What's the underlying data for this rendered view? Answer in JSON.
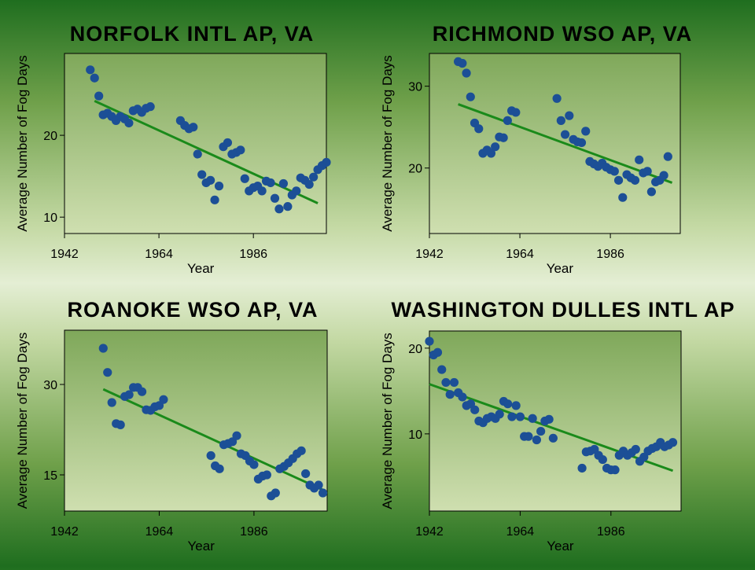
{
  "colors": {
    "point": "#1c4f96",
    "trend": "#1a8a1a",
    "plot_bg_top": "#7fa85a",
    "plot_bg_bottom": "#cfdfb0"
  },
  "chart_data": [
    {
      "type": "scatter",
      "title": "NORFOLK INTL AP, VA",
      "xlabel": "Year",
      "ylabel": "Average Number of Fog Days",
      "xlim": [
        1942,
        2003
      ],
      "ylim": [
        8,
        30
      ],
      "xticks": [
        1942,
        1964,
        1986
      ],
      "yticks": [
        10,
        20
      ],
      "points": [
        [
          1948,
          28
        ],
        [
          1949,
          27
        ],
        [
          1950,
          24.8
        ],
        [
          1951,
          22.5
        ],
        [
          1952,
          22.7
        ],
        [
          1953,
          22.3
        ],
        [
          1954,
          21.8
        ],
        [
          1955,
          22.3
        ],
        [
          1956,
          22
        ],
        [
          1957,
          21.5
        ],
        [
          1958,
          23
        ],
        [
          1959,
          23.2
        ],
        [
          1960,
          22.8
        ],
        [
          1961,
          23.3
        ],
        [
          1962,
          23.5
        ],
        [
          1969,
          21.8
        ],
        [
          1970,
          21.2
        ],
        [
          1971,
          20.8
        ],
        [
          1972,
          21
        ],
        [
          1973,
          17.7
        ],
        [
          1974,
          15.2
        ],
        [
          1975,
          14.2
        ],
        [
          1976,
          14.5
        ],
        [
          1977,
          12.1
        ],
        [
          1978,
          13.8
        ],
        [
          1979,
          18.6
        ],
        [
          1980,
          19.1
        ],
        [
          1981,
          17.7
        ],
        [
          1982,
          17.9
        ],
        [
          1983,
          18.2
        ],
        [
          1984,
          14.7
        ],
        [
          1985,
          13.2
        ],
        [
          1986,
          13.6
        ],
        [
          1987,
          13.8
        ],
        [
          1988,
          13.2
        ],
        [
          1989,
          14.4
        ],
        [
          1990,
          14.2
        ],
        [
          1991,
          12.3
        ],
        [
          1992,
          11
        ],
        [
          1993,
          14.1
        ],
        [
          1994,
          11.3
        ],
        [
          1995,
          12.7
        ],
        [
          1996,
          13.2
        ],
        [
          1997,
          14.8
        ],
        [
          1998,
          14.5
        ],
        [
          1999,
          14
        ],
        [
          2000,
          14.9
        ],
        [
          2001,
          15.8
        ],
        [
          2002,
          16.3
        ],
        [
          2003,
          16.7
        ]
      ],
      "trend": [
        [
          1949,
          24.2
        ],
        [
          2001,
          11.7
        ]
      ]
    },
    {
      "type": "scatter",
      "title": "RICHMOND WSO AP, VA",
      "xlabel": "Year",
      "ylabel": "Average Number of Fog Days",
      "xlim": [
        1942,
        2003
      ],
      "ylim": [
        12,
        34
      ],
      "xticks": [
        1942,
        1964,
        1986
      ],
      "yticks": [
        20,
        30
      ],
      "points": [
        [
          1949,
          33
        ],
        [
          1950,
          32.8
        ],
        [
          1951,
          31.6
        ],
        [
          1952,
          28.7
        ],
        [
          1953,
          25.5
        ],
        [
          1954,
          24.8
        ],
        [
          1955,
          21.8
        ],
        [
          1956,
          22.2
        ],
        [
          1957,
          21.8
        ],
        [
          1958,
          22.6
        ],
        [
          1959,
          23.8
        ],
        [
          1960,
          23.7
        ],
        [
          1961,
          25.8
        ],
        [
          1962,
          27
        ],
        [
          1963,
          26.8
        ],
        [
          1973,
          28.5
        ],
        [
          1974,
          25.8
        ],
        [
          1975,
          24.1
        ],
        [
          1976,
          26.4
        ],
        [
          1977,
          23.5
        ],
        [
          1978,
          23.2
        ],
        [
          1979,
          23.1
        ],
        [
          1980,
          24.5
        ],
        [
          1981,
          20.8
        ],
        [
          1982,
          20.5
        ],
        [
          1983,
          20.2
        ],
        [
          1984,
          20.6
        ],
        [
          1985,
          20.1
        ],
        [
          1986,
          19.8
        ],
        [
          1987,
          19.6
        ],
        [
          1988,
          18.5
        ],
        [
          1989,
          16.4
        ],
        [
          1990,
          19.2
        ],
        [
          1991,
          18.8
        ],
        [
          1992,
          18.5
        ],
        [
          1993,
          21
        ],
        [
          1994,
          19.4
        ],
        [
          1995,
          19.6
        ],
        [
          1996,
          17.1
        ],
        [
          1997,
          18.3
        ],
        [
          1998,
          18.5
        ],
        [
          1999,
          19.1
        ],
        [
          2000,
          21.4
        ]
      ],
      "trend": [
        [
          1949,
          27.8
        ],
        [
          2001,
          18.2
        ]
      ]
    },
    {
      "type": "scatter",
      "title": "ROANOKE WSO AP, VA",
      "xlabel": "Year",
      "ylabel": "Average Number of Fog Days",
      "xlim": [
        1942,
        2003
      ],
      "ylim": [
        9,
        39
      ],
      "xticks": [
        1942,
        1964,
        1986
      ],
      "yticks": [
        15,
        30
      ],
      "points": [
        [
          1951,
          36
        ],
        [
          1952,
          32
        ],
        [
          1953,
          27
        ],
        [
          1954,
          23.5
        ],
        [
          1955,
          23.3
        ],
        [
          1956,
          28
        ],
        [
          1957,
          28.3
        ],
        [
          1958,
          29.5
        ],
        [
          1959,
          29.5
        ],
        [
          1960,
          28.8
        ],
        [
          1961,
          25.8
        ],
        [
          1962,
          25.7
        ],
        [
          1963,
          26.3
        ],
        [
          1964,
          26.5
        ],
        [
          1965,
          27.5
        ],
        [
          1976,
          18.2
        ],
        [
          1977,
          16.5
        ],
        [
          1978,
          16
        ],
        [
          1979,
          20
        ],
        [
          1980,
          20.2
        ],
        [
          1981,
          20.5
        ],
        [
          1982,
          21.5
        ],
        [
          1983,
          18.5
        ],
        [
          1984,
          18.2
        ],
        [
          1985,
          17.3
        ],
        [
          1986,
          16.7
        ],
        [
          1987,
          14.3
        ],
        [
          1988,
          14.8
        ],
        [
          1989,
          15
        ],
        [
          1990,
          11.5
        ],
        [
          1991,
          12
        ],
        [
          1992,
          16
        ],
        [
          1993,
          16.4
        ],
        [
          1994,
          17
        ],
        [
          1995,
          17.7
        ],
        [
          1996,
          18.5
        ],
        [
          1997,
          19
        ],
        [
          1998,
          15.2
        ],
        [
          1999,
          13.3
        ],
        [
          2000,
          12.8
        ],
        [
          2001,
          13.3
        ],
        [
          2002,
          12
        ]
      ],
      "trend": [
        [
          1951,
          29.2
        ],
        [
          2002,
          12.5
        ]
      ]
    },
    {
      "type": "scatter",
      "title": "WASHINGTON DULLES INTL AP",
      "xlabel": "Year",
      "ylabel": "Average Number of Fog Days",
      "xlim": [
        1942,
        2003
      ],
      "ylim": [
        1,
        22
      ],
      "xticks": [
        1942,
        1964,
        1986
      ],
      "yticks": [
        10,
        20
      ],
      "points": [
        [
          1942,
          20.8
        ],
        [
          1943,
          19.2
        ],
        [
          1944,
          19.5
        ],
        [
          1945,
          17.5
        ],
        [
          1946,
          16
        ],
        [
          1947,
          14.6
        ],
        [
          1948,
          16
        ],
        [
          1949,
          14.8
        ],
        [
          1950,
          14.3
        ],
        [
          1951,
          13.3
        ],
        [
          1952,
          13.5
        ],
        [
          1953,
          12.8
        ],
        [
          1954,
          11.5
        ],
        [
          1955,
          11.3
        ],
        [
          1956,
          11.8
        ],
        [
          1957,
          12
        ],
        [
          1958,
          11.8
        ],
        [
          1959,
          12.3
        ],
        [
          1960,
          13.8
        ],
        [
          1961,
          13.5
        ],
        [
          1962,
          12
        ],
        [
          1963,
          13.3
        ],
        [
          1964,
          12
        ],
        [
          1965,
          9.7
        ],
        [
          1966,
          9.7
        ],
        [
          1967,
          11.8
        ],
        [
          1968,
          9.3
        ],
        [
          1969,
          10.3
        ],
        [
          1970,
          11.5
        ],
        [
          1971,
          11.7
        ],
        [
          1972,
          9.5
        ],
        [
          1979,
          6
        ],
        [
          1980,
          7.9
        ],
        [
          1981,
          8
        ],
        [
          1982,
          8.2
        ],
        [
          1983,
          7.5
        ],
        [
          1984,
          7
        ],
        [
          1985,
          6
        ],
        [
          1986,
          5.8
        ],
        [
          1987,
          5.8
        ],
        [
          1988,
          7.5
        ],
        [
          1989,
          8
        ],
        [
          1990,
          7.5
        ],
        [
          1991,
          7.8
        ],
        [
          1992,
          8.2
        ],
        [
          1993,
          6.8
        ],
        [
          1994,
          7.3
        ],
        [
          1995,
          8
        ],
        [
          1996,
          8.3
        ],
        [
          1997,
          8.5
        ],
        [
          1998,
          9
        ],
        [
          1999,
          8.5
        ],
        [
          2000,
          8.7
        ],
        [
          2001,
          9
        ]
      ],
      "trend": [
        [
          1942,
          15.8
        ],
        [
          2001,
          5.7
        ]
      ]
    }
  ]
}
